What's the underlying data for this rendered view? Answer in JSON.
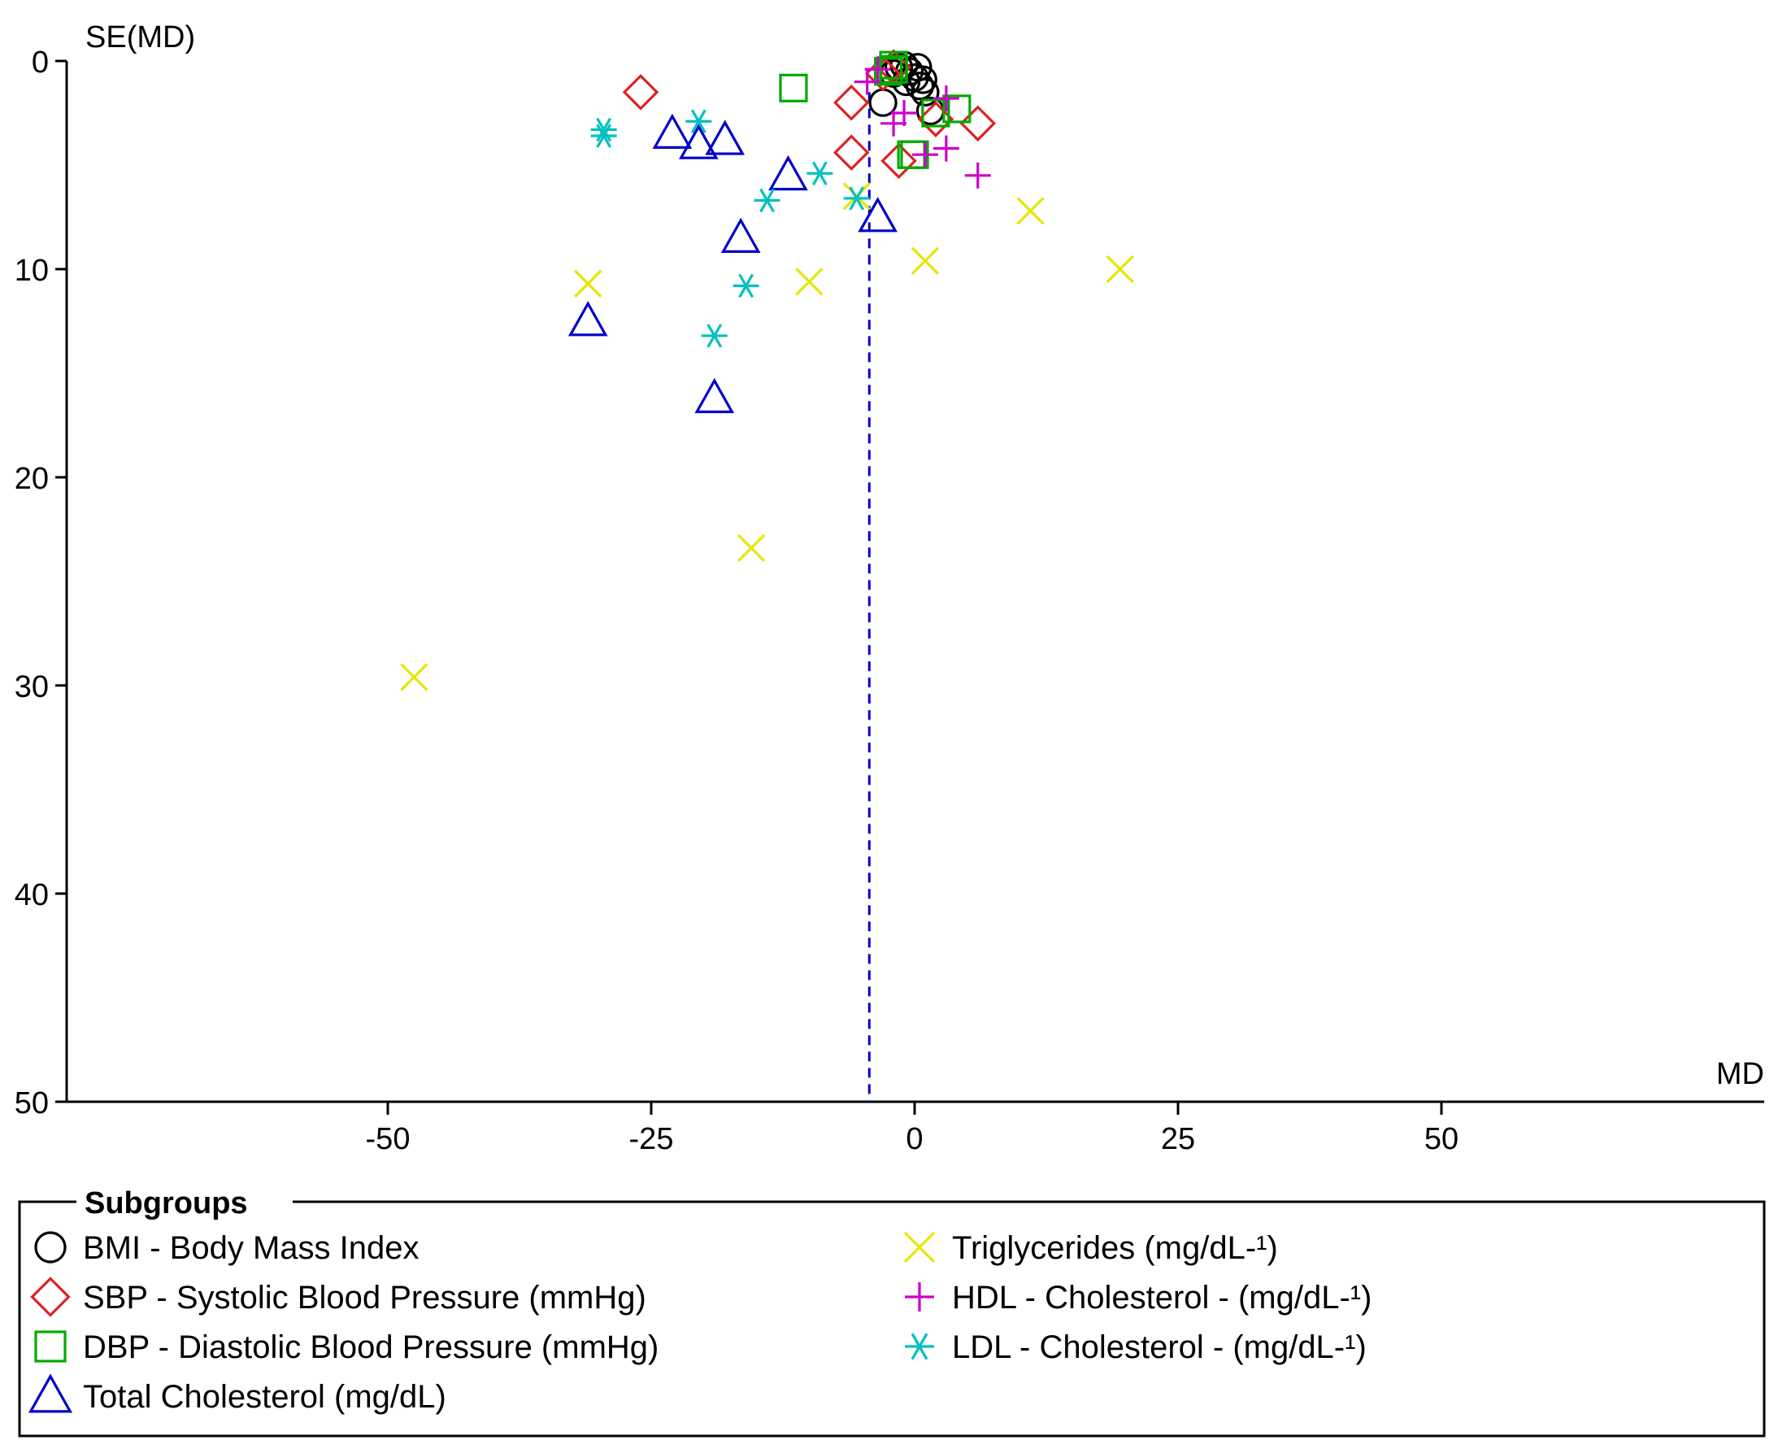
{
  "chart_data": {
    "type": "scatter",
    "title": "",
    "xlabel": "MD",
    "ylabel": "SE(MD)",
    "xlim": [
      -80,
      80
    ],
    "ylim": [
      0,
      50
    ],
    "y_inverted": true,
    "x_ticks": [
      -50,
      -25,
      0,
      25,
      50
    ],
    "x_tick_labels": [
      "-50",
      "-25",
      "0",
      "25",
      "50"
    ],
    "y_ticks": [
      0,
      10,
      20,
      30,
      40,
      50
    ],
    "y_tick_labels": [
      "0",
      "10",
      "20",
      "30",
      "40",
      "50"
    ],
    "reference_line": {
      "x": -4.3,
      "style": "dashed",
      "color": "#0000cc"
    },
    "legend_title": "Subgroups",
    "legend_placement": "bottom",
    "series": [
      {
        "name": "BMI - Body Mass Index",
        "marker": "circle",
        "color": "#000000",
        "points": [
          [
            -1,
            0.2
          ],
          [
            -0.5,
            0.5
          ],
          [
            -1.5,
            0.3
          ],
          [
            0,
            0.8
          ],
          [
            0.5,
            1.2
          ],
          [
            -3,
            2
          ],
          [
            1,
            1.5
          ],
          [
            -2,
            0.6
          ],
          [
            0.3,
            0.3
          ],
          [
            1.5,
            2.4
          ],
          [
            -0.8,
            1.0
          ],
          [
            0.8,
            0.9
          ]
        ]
      },
      {
        "name": "SBP - Systolic Blood Pressure (mmHg)",
        "marker": "diamond",
        "color": "#dd2222",
        "points": [
          [
            -26,
            1.5
          ],
          [
            -6,
            2
          ],
          [
            -6,
            4.4
          ],
          [
            -1.5,
            4.8
          ],
          [
            6,
            3
          ],
          [
            2,
            2.8
          ],
          [
            -3,
            0.6
          ],
          [
            -2,
            0.3
          ]
        ]
      },
      {
        "name": "DBP - Diastolic Blood Pressure (mmHg)",
        "marker": "square",
        "color": "#00aa00",
        "points": [
          [
            -11.5,
            1.3
          ],
          [
            -2,
            0.2
          ],
          [
            -2.5,
            0.5
          ],
          [
            -2,
            0.4
          ],
          [
            2,
            2.5
          ],
          [
            4,
            2.3
          ],
          [
            0,
            4.5
          ],
          [
            -0.3,
            4.5
          ]
        ]
      },
      {
        "name": "Total Cholesterol (mg/dL)",
        "marker": "triangle",
        "color": "#0000cc",
        "points": [
          [
            -23,
            3.5
          ],
          [
            -20.5,
            4
          ],
          [
            -18,
            3.8
          ],
          [
            -12,
            5.5
          ],
          [
            -16.5,
            8.5
          ],
          [
            -3.5,
            7.5
          ],
          [
            -31,
            12.5
          ],
          [
            -19,
            16.2
          ]
        ]
      },
      {
        "name": "Triglycerides (mg/dL-¹)",
        "marker": "x",
        "color": "#e6e600",
        "points": [
          [
            -31,
            10.7
          ],
          [
            -10,
            10.6
          ],
          [
            1,
            9.6
          ],
          [
            11,
            7.2
          ],
          [
            19.5,
            10
          ],
          [
            -15.5,
            23.4
          ],
          [
            -47.5,
            29.6
          ],
          [
            -5.5,
            6.5
          ]
        ]
      },
      {
        "name": "HDL - Cholesterol - (mg/dL-¹)",
        "marker": "plus",
        "color": "#cc00cc",
        "points": [
          [
            -4.5,
            1
          ],
          [
            -2,
            3
          ],
          [
            3,
            4.2
          ],
          [
            6,
            5.5
          ],
          [
            3,
            1.8
          ],
          [
            -1,
            2.5
          ],
          [
            1,
            4.5
          ],
          [
            -3.5,
            0.4
          ]
        ]
      },
      {
        "name": "LDL - Cholesterol - (mg/dL-¹)",
        "marker": "asterisk",
        "color": "#00c0c0",
        "points": [
          [
            -29.5,
            3.3
          ],
          [
            -29.5,
            3.6
          ],
          [
            -20.5,
            2.9
          ],
          [
            -14,
            6.7
          ],
          [
            -9,
            5.4
          ],
          [
            -5.5,
            6.6
          ],
          [
            -16,
            10.8
          ],
          [
            -19,
            13.2
          ]
        ]
      }
    ]
  }
}
